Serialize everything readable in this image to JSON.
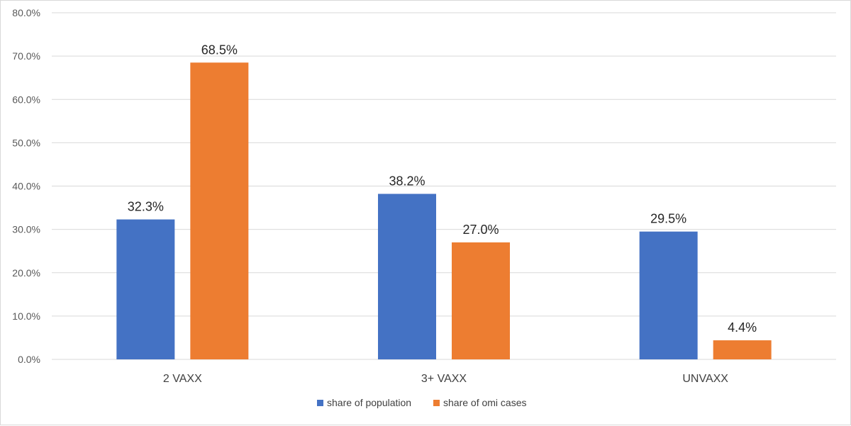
{
  "chart_data": {
    "type": "bar",
    "title": "",
    "xlabel": "",
    "ylabel": "",
    "categories": [
      "2 VAXX",
      "3+ VAXX",
      "UNVAXX"
    ],
    "series": [
      {
        "name": "share of population",
        "color": "#4472C4",
        "values": [
          32.3,
          38.2,
          29.5
        ],
        "labels": [
          "32.3%",
          "38.2%",
          "29.5%"
        ]
      },
      {
        "name": "share of omi cases",
        "color": "#ED7D31",
        "values": [
          68.5,
          27.0,
          4.4
        ],
        "labels": [
          "68.5%",
          "27.0%",
          "4.4%"
        ]
      }
    ],
    "ylim": [
      0,
      80
    ],
    "yticks": [
      0,
      10,
      20,
      30,
      40,
      50,
      60,
      70,
      80
    ],
    "ytick_labels": [
      "0.0%",
      "10.0%",
      "20.0%",
      "30.0%",
      "40.0%",
      "50.0%",
      "60.0%",
      "70.0%",
      "80.0%"
    ],
    "grid": true,
    "legend_position": "bottom"
  }
}
